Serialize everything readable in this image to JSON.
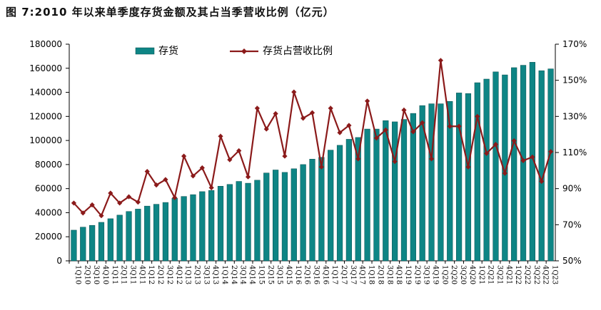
{
  "title": "图 7:2010 年以来单季度存货金额及其占当季营收比例（亿元）",
  "chart_data": {
    "type": "bar",
    "title": "图 7:2010 年以来单季度存货金额及其占当季营收比例（亿元）",
    "categories": [
      "1Q10",
      "2Q10",
      "3Q10",
      "4Q10",
      "1Q11",
      "2Q11",
      "3Q11",
      "4Q11",
      "1Q12",
      "2Q12",
      "3Q12",
      "4Q12",
      "1Q13",
      "2Q13",
      "3Q13",
      "4Q13",
      "1Q14",
      "2Q14",
      "3Q14",
      "4Q14",
      "1Q15",
      "2Q15",
      "3Q15",
      "4Q15",
      "1Q16",
      "2Q16",
      "3Q16",
      "4Q16",
      "1Q17",
      "2Q17",
      "3Q17",
      "4Q17",
      "1Q18",
      "2Q18",
      "3Q18",
      "4Q18",
      "1Q19",
      "2Q19",
      "3Q19",
      "4Q19",
      "1Q20",
      "2Q20",
      "3Q20",
      "4Q20",
      "1Q21",
      "2Q21",
      "3Q21",
      "4Q21",
      "1Q22",
      "2Q22",
      "3Q22",
      "4Q22",
      "1Q23"
    ],
    "series": [
      {
        "name": "存货",
        "axis": "left",
        "values": [
          25500,
          28000,
          29500,
          32000,
          35000,
          38000,
          41000,
          43000,
          45500,
          47000,
          48500,
          52000,
          53500,
          55000,
          57500,
          58500,
          62000,
          63500,
          66000,
          64500,
          67000,
          73000,
          75500,
          73500,
          76500,
          80000,
          84500,
          86000,
          92000,
          96000,
          101000,
          102500,
          109500,
          109500,
          116500,
          115500,
          117500,
          122500,
          129000,
          130500,
          130500,
          132500,
          139500,
          139000,
          148000,
          151000,
          157000,
          154500,
          160500,
          162500,
          165000,
          158000,
          159500
        ]
      },
      {
        "name": "存货占营收比例",
        "axis": "right",
        "values": [
          82,
          76.5,
          81,
          75,
          87.5,
          82,
          85.5,
          82.5,
          99.5,
          92,
          95,
          85,
          108,
          97,
          101.5,
          90.5,
          119,
          106,
          111,
          96.5,
          134.5,
          123,
          131.5,
          108,
          143.5,
          129,
          132,
          102,
          134.5,
          121,
          125,
          106.5,
          138.5,
          118,
          122.5,
          105,
          133.5,
          121.5,
          126.5,
          106.5,
          161,
          124.5,
          124.5,
          102,
          130,
          109.5,
          114.5,
          98.5,
          116.5,
          105.5,
          107.5,
          94,
          110.5
        ]
      }
    ],
    "yaxis_left": {
      "min": 0,
      "max": 180000,
      "step": 20000,
      "ticks": [
        "0",
        "20000",
        "40000",
        "60000",
        "80000",
        "100000",
        "120000",
        "140000",
        "160000",
        "180000"
      ]
    },
    "yaxis_right": {
      "min": 50,
      "max": 170,
      "step": 20,
      "ticks": [
        "50%",
        "70%",
        "90%",
        "110%",
        "130%",
        "150%",
        "170%"
      ]
    },
    "legend_position": "top-left",
    "grid": false
  },
  "colors": {
    "bar": "#0e8585",
    "bar_edge": "#0a4f4f",
    "line": "#8b1a1a"
  }
}
